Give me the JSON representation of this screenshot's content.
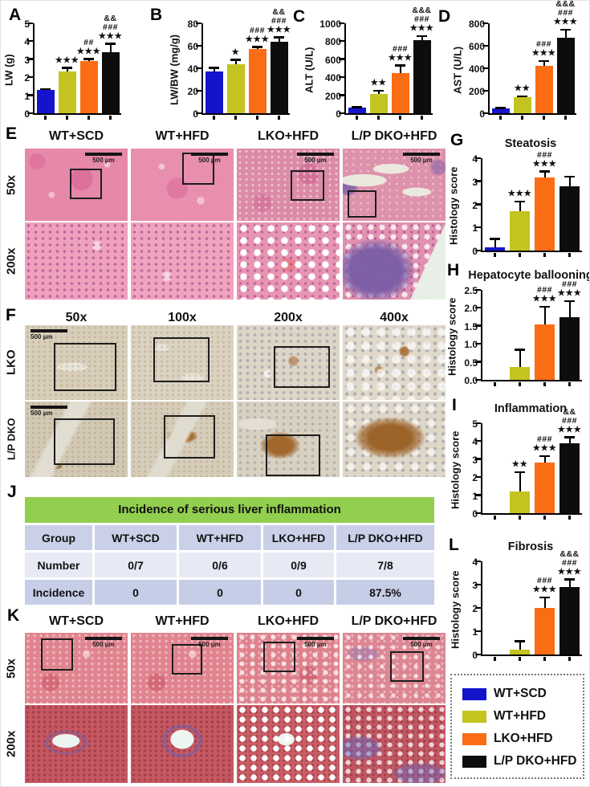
{
  "colors": {
    "wt_scd_blue": "#1414cd",
    "wt_hfd_yellow": "#c3c41f",
    "lko_hfd_orange": "#fb6d14",
    "dko_hfd_black": "#0d0d0d",
    "table_header_green": "#92cf4e"
  },
  "legend": {
    "entries": [
      {
        "label": "WT+SCD",
        "color": "#1414cd"
      },
      {
        "label": "WT+HFD",
        "color": "#c3c41f"
      },
      {
        "label": "LKO+HFD",
        "color": "#fb6d14"
      },
      {
        "label": "L/P DKO+HFD",
        "color": "#0d0d0d"
      }
    ]
  },
  "panels": {
    "A": {
      "letter": "A"
    },
    "B": {
      "letter": "B"
    },
    "C": {
      "letter": "C"
    },
    "D": {
      "letter": "D"
    },
    "E": {
      "letter": "E",
      "columns": [
        "WT+SCD",
        "WT+HFD",
        "LKO+HFD",
        "L/P DKO+HFD"
      ],
      "rows": [
        "50x",
        "200x"
      ],
      "scale_label": "500 μm"
    },
    "F": {
      "letter": "F",
      "columns": [
        "50x",
        "100x",
        "200x",
        "400x"
      ],
      "rows": [
        "LKO",
        "L/P DKO"
      ],
      "scale_label": "500 μm"
    },
    "G": {
      "letter": "G"
    },
    "H": {
      "letter": "H"
    },
    "I": {
      "letter": "I"
    },
    "J": {
      "letter": "J",
      "table": {
        "title": "Incidence of serious liver inflammation",
        "header_row": [
          "Group",
          "WT+SCD",
          "WT+HFD",
          "LKO+HFD",
          "L/P DKO+HFD"
        ],
        "rows": [
          [
            "Number",
            "0/7",
            "0/6",
            "0/9",
            "7/8"
          ],
          [
            "Incidence",
            "0",
            "0",
            "0",
            "87.5%"
          ]
        ]
      }
    },
    "K": {
      "letter": "K",
      "columns": [
        "WT+SCD",
        "WT+HFD",
        "LKO+HFD",
        "L/P DKO+HFD"
      ],
      "rows": [
        "50x",
        "200x"
      ],
      "scale_label": "500 μm"
    },
    "L": {
      "letter": "L"
    }
  },
  "chart_data": [
    {
      "type": "bar",
      "panel": "A",
      "title": "",
      "ylabel": "LW (g)",
      "categories": [
        "WT+SCD",
        "WT+HFD",
        "LKO+HFD",
        "L/P DKO+HFD"
      ],
      "values": [
        1.3,
        2.3,
        2.9,
        3.4
      ],
      "errors": [
        0.07,
        0.25,
        0.15,
        0.5
      ],
      "ylim": [
        0,
        5
      ],
      "yticks": [
        "0",
        "1",
        "2",
        "3",
        "4",
        "5"
      ],
      "annotations": [
        [],
        [
          "★★★"
        ],
        [
          "##",
          "★★★"
        ],
        [
          "&&",
          "###",
          "★★★"
        ]
      ]
    },
    {
      "type": "bar",
      "panel": "B",
      "title": "",
      "ylabel": "LW/BW (mg/g)",
      "categories": [
        "WT+SCD",
        "WT+HFD",
        "LKO+HFD",
        "L/P DKO+HFD"
      ],
      "values": [
        37.5,
        43.5,
        57,
        63.5
      ],
      "errors": [
        3.5,
        4.5,
        2.5,
        4.5
      ],
      "ylim": [
        0,
        80
      ],
      "yticks": [
        "0",
        "20",
        "40",
        "60",
        "80"
      ],
      "annotations": [
        [],
        [
          "★"
        ],
        [
          "###",
          "★★★"
        ],
        [
          "&&",
          "###",
          "★★★"
        ]
      ]
    },
    {
      "type": "bar",
      "panel": "C",
      "title": "",
      "ylabel": "ALT (U/L)",
      "categories": [
        "WT+SCD",
        "WT+HFD",
        "LKO+HFD",
        "L/P DKO+HFD"
      ],
      "values": [
        60,
        210,
        450,
        810
      ],
      "errors": [
        15,
        45,
        90,
        55
      ],
      "ylim": [
        0,
        1000
      ],
      "yticks": [
        "0",
        "200",
        "400",
        "600",
        "800",
        "1000"
      ],
      "annotations": [
        [],
        [
          "★★"
        ],
        [
          "###",
          "★★★"
        ],
        [
          "&&&",
          "###",
          "★★★"
        ]
      ]
    },
    {
      "type": "bar",
      "panel": "D",
      "title": "",
      "ylabel": "AST (U/L)",
      "categories": [
        "WT+SCD",
        "WT+HFD",
        "LKO+HFD",
        "L/P DKO+HFD"
      ],
      "values": [
        45,
        145,
        420,
        670
      ],
      "errors": [
        8,
        12,
        50,
        80
      ],
      "ylim": [
        0,
        800
      ],
      "yticks": [
        "0",
        "200",
        "400",
        "600",
        "800"
      ],
      "annotations": [
        [],
        [
          "★★"
        ],
        [
          "###",
          "★★★"
        ],
        [
          "&&&",
          "###",
          "★★★"
        ]
      ]
    },
    {
      "type": "bar",
      "panel": "G",
      "title": "Steatosis",
      "ylabel": "Histology score",
      "categories": [
        "WT+SCD",
        "WT+HFD",
        "LKO+HFD",
        "L/P DKO+HFD"
      ],
      "values": [
        0.15,
        1.7,
        3.15,
        2.8
      ],
      "errors": [
        0.38,
        0.45,
        0.3,
        0.42
      ],
      "ylim": [
        0,
        4
      ],
      "yticks": [
        "0",
        "1",
        "2",
        "3",
        "4"
      ],
      "annotations": [
        [],
        [
          "★★★"
        ],
        [
          "###",
          "★★★"
        ],
        []
      ]
    },
    {
      "type": "bar",
      "panel": "H",
      "title": "Hepatocyte ballooning",
      "ylabel": "Histology score",
      "categories": [
        "WT+SCD",
        "WT+HFD",
        "LKO+HFD",
        "L/P DKO+HFD"
      ],
      "values": [
        0,
        0.35,
        1.55,
        1.75
      ],
      "errors": [
        0,
        0.5,
        0.5,
        0.45
      ],
      "ylim": [
        0,
        2.5
      ],
      "yticks": [
        "0.0",
        "0.5",
        "1.0",
        "1.5",
        "2.0",
        "2.5"
      ],
      "annotations": [
        [],
        [],
        [
          "###",
          "★★★"
        ],
        [
          "###",
          "★★★"
        ]
      ]
    },
    {
      "type": "bar",
      "panel": "I",
      "title": "Inflammation",
      "ylabel": "Histology score",
      "categories": [
        "WT+SCD",
        "WT+HFD",
        "LKO+HFD",
        "L/P DKO+HFD"
      ],
      "values": [
        0,
        1.2,
        2.8,
        3.9
      ],
      "errors": [
        0,
        1.1,
        0.4,
        0.35
      ],
      "ylim": [
        0,
        5
      ],
      "yticks": [
        "0",
        "1",
        "2",
        "3",
        "4",
        "5"
      ],
      "annotations": [
        [],
        [
          "★★"
        ],
        [
          "###",
          "★★★"
        ],
        [
          "&&",
          "###",
          "★★★"
        ]
      ]
    },
    {
      "type": "bar",
      "panel": "L",
      "title": "Fibrosis",
      "ylabel": "Histology score",
      "categories": [
        "WT+SCD",
        "WT+HFD",
        "LKO+HFD",
        "L/P DKO+HFD"
      ],
      "values": [
        0,
        0.2,
        2.0,
        2.9
      ],
      "errors": [
        0,
        0.4,
        0.48,
        0.35
      ],
      "ylim": [
        0,
        4
      ],
      "yticks": [
        "0",
        "1",
        "2",
        "3",
        "4"
      ],
      "annotations": [
        [],
        [],
        [
          "###",
          "★★★"
        ],
        [
          "&&&",
          "###",
          "★★★"
        ]
      ]
    }
  ]
}
